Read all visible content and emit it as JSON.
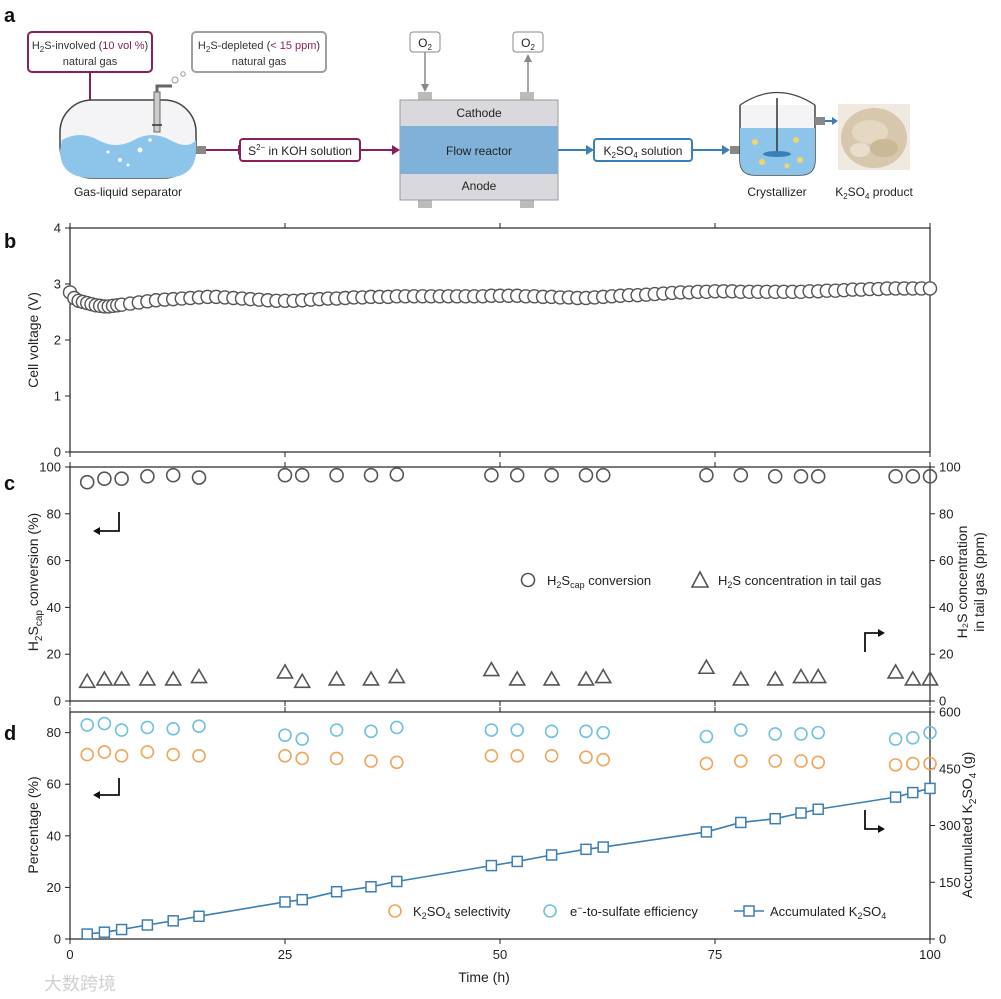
{
  "panels": {
    "a": "a",
    "b": "b",
    "c": "c",
    "d": "d"
  },
  "schematic": {
    "inlet_box": {
      "line1_pre": "H",
      "line1_sub": "2",
      "line1_mid": "S-involved (",
      "line1_hl": "10 vol %",
      "line1_post": ")",
      "line2": "natural gas"
    },
    "outlet_box": {
      "line1_pre": "H",
      "line1_sub": "2",
      "line1_mid": "S-depleted (",
      "line1_hl": "< 15 ppm",
      "line1_post": ")",
      "line2": "natural gas"
    },
    "o2_in": {
      "main": "O",
      "sub": "2"
    },
    "o2_out": {
      "main": "O",
      "sub": "2"
    },
    "cathode": "Cathode",
    "flow_reactor": "Flow reactor",
    "anode": "Anode",
    "s2_solution": {
      "pre": "S",
      "sup": "2−",
      "post": " in KOH solution"
    },
    "k2so4_solution": {
      "a": "K",
      "b": "2",
      "c": "SO",
      "d": "4",
      "e": " solution"
    },
    "separator_label": "Gas-liquid separator",
    "crystallizer_label": "Crystallizer",
    "product_label": {
      "a": "K",
      "b": "2",
      "c": "SO",
      "d": "4",
      "e": " product"
    },
    "colors": {
      "inlet": "#8b1f5c",
      "outlet": "#a0a0a0",
      "reactor": "#7fb1d9",
      "reactor_outer": "#d9d9dd",
      "solution_blue": "#3a7fb5",
      "water": "#8cc4ea"
    }
  },
  "chart_data": [
    {
      "panel": "b",
      "type": "scatter",
      "xlabel": "",
      "ylabel": "Cell voltage (V)",
      "xlim": [
        0,
        100
      ],
      "ylim": [
        0,
        4
      ],
      "y_ticks": [
        "0",
        "1",
        "2",
        "3",
        "4"
      ],
      "marker": "circle",
      "marker_color": "#555555",
      "series": [
        {
          "name": "Cell voltage",
          "x": [
            0,
            0.5,
            1,
            1.5,
            2,
            2.5,
            3,
            3.5,
            4,
            4.5,
            5,
            5.5,
            6,
            7,
            8,
            9,
            10,
            11,
            12,
            13,
            14,
            15,
            16,
            17,
            18,
            19,
            20,
            21,
            22,
            23,
            24,
            25,
            26,
            27,
            28,
            29,
            30,
            31,
            32,
            33,
            34,
            35,
            36,
            37,
            38,
            39,
            40,
            41,
            42,
            43,
            44,
            45,
            46,
            47,
            48,
            49,
            50,
            51,
            52,
            53,
            54,
            55,
            56,
            57,
            58,
            59,
            60,
            61,
            62,
            63,
            64,
            65,
            66,
            67,
            68,
            69,
            70,
            71,
            72,
            73,
            74,
            75,
            76,
            77,
            78,
            79,
            80,
            81,
            82,
            83,
            84,
            85,
            86,
            87,
            88,
            89,
            90,
            91,
            92,
            93,
            94,
            95,
            96,
            97,
            98,
            99,
            100
          ],
          "y": [
            2.85,
            2.75,
            2.7,
            2.68,
            2.66,
            2.64,
            2.62,
            2.61,
            2.6,
            2.6,
            2.61,
            2.62,
            2.63,
            2.65,
            2.67,
            2.69,
            2.71,
            2.72,
            2.73,
            2.74,
            2.75,
            2.76,
            2.77,
            2.77,
            2.76,
            2.75,
            2.74,
            2.73,
            2.72,
            2.71,
            2.7,
            2.7,
            2.7,
            2.71,
            2.72,
            2.73,
            2.74,
            2.74,
            2.75,
            2.76,
            2.76,
            2.77,
            2.77,
            2.77,
            2.78,
            2.78,
            2.78,
            2.78,
            2.78,
            2.78,
            2.78,
            2.78,
            2.78,
            2.78,
            2.78,
            2.79,
            2.79,
            2.79,
            2.79,
            2.78,
            2.78,
            2.77,
            2.77,
            2.76,
            2.76,
            2.75,
            2.75,
            2.76,
            2.77,
            2.78,
            2.79,
            2.8,
            2.8,
            2.81,
            2.82,
            2.83,
            2.84,
            2.85,
            2.85,
            2.86,
            2.86,
            2.87,
            2.87,
            2.87,
            2.86,
            2.86,
            2.86,
            2.86,
            2.86,
            2.86,
            2.86,
            2.86,
            2.87,
            2.87,
            2.88,
            2.88,
            2.89,
            2.9,
            2.9,
            2.91,
            2.91,
            2.92,
            2.92,
            2.92,
            2.92,
            2.92,
            2.92
          ]
        }
      ]
    },
    {
      "panel": "c",
      "type": "scatter",
      "xlabel": "",
      "ylabel": {
        "a": "H",
        "b": "2",
        "c": "S",
        "d": "cap",
        "e": " conversion  (%)"
      },
      "y2label_line1": "H₂S concentration",
      "y2label_line2": "in tail gas (ppm)",
      "xlim": [
        0,
        100
      ],
      "ylim": [
        0,
        100
      ],
      "y_ticks": [
        "0",
        "20",
        "40",
        "60",
        "80",
        "100"
      ],
      "y2lim": [
        0,
        100
      ],
      "y2_ticks": [
        "0",
        "20",
        "40",
        "60",
        "80",
        "100"
      ],
      "series": [
        {
          "name": {
            "a": "H",
            "b": "2",
            "c": "S",
            "d": "cap",
            "e": " conversion"
          },
          "axis": "left",
          "marker": "circle",
          "color": "#555555",
          "x": [
            2,
            4,
            6,
            9,
            12,
            15,
            25,
            27,
            31,
            35,
            38,
            49,
            52,
            56,
            60,
            62,
            74,
            78,
            82,
            85,
            87,
            96,
            98,
            100
          ],
          "y": [
            93.5,
            95,
            95,
            96,
            96.5,
            95.5,
            96.5,
            96.5,
            96.5,
            96.5,
            96.8,
            96.5,
            96.5,
            96.5,
            96.5,
            96.5,
            96.5,
            96.5,
            96,
            96,
            96,
            96,
            96,
            96
          ]
        },
        {
          "name": {
            "a": "H",
            "b": "2",
            "c": "S concentration in tail gas"
          },
          "axis": "right",
          "marker": "triangle",
          "color": "#555555",
          "x": [
            2,
            4,
            6,
            9,
            12,
            15,
            25,
            27,
            31,
            35,
            38,
            49,
            52,
            56,
            60,
            62,
            74,
            78,
            82,
            85,
            87,
            96,
            98,
            100
          ],
          "y": [
            8,
            9,
            9,
            9,
            9,
            10,
            12,
            8,
            9,
            9,
            10,
            13,
            9,
            9,
            9,
            10,
            14,
            9,
            9,
            10,
            10,
            12,
            9,
            9
          ]
        }
      ]
    },
    {
      "panel": "d",
      "type": "scatter",
      "xlabel": "Time (h)",
      "ylabel": "Percentage (%)",
      "y2label": {
        "a": "Accumulated K",
        "b": "2",
        "c": "SO",
        "d": "4",
        "e": " (g)"
      },
      "xlim": [
        0,
        100
      ],
      "x_ticks": [
        "0",
        "25",
        "50",
        "75",
        "100"
      ],
      "ylim": [
        0,
        88
      ],
      "y_ticks": [
        "0",
        "20",
        "40",
        "60",
        "80"
      ],
      "y2lim": [
        0,
        600
      ],
      "y2_ticks": [
        "0",
        "150",
        "300",
        "450",
        "600"
      ],
      "series": [
        {
          "name": {
            "a": "K",
            "b": "2",
            "c": "SO",
            "d": "4",
            "e": " selectivity"
          },
          "axis": "left",
          "marker": "circle",
          "color": "#f0a55a",
          "x": [
            2,
            4,
            6,
            9,
            12,
            15,
            25,
            27,
            31,
            35,
            38,
            49,
            52,
            56,
            60,
            62,
            74,
            78,
            82,
            85,
            87,
            96,
            98,
            100
          ],
          "y": [
            71.5,
            72.5,
            71,
            72.5,
            71.5,
            71,
            71,
            70,
            70,
            69,
            68.5,
            71,
            71,
            71,
            70.5,
            69.5,
            68,
            69,
            69,
            69,
            68.5,
            67.5,
            68,
            68
          ]
        },
        {
          "name": {
            "a": "e",
            "b": "−",
            "c": "-to-sulfate efficiency"
          },
          "axis": "left",
          "marker": "circle",
          "color": "#6ec1e0",
          "x": [
            2,
            4,
            6,
            9,
            12,
            15,
            25,
            27,
            31,
            35,
            38,
            49,
            52,
            56,
            60,
            62,
            74,
            78,
            82,
            85,
            87,
            96,
            98,
            100
          ],
          "y": [
            83,
            83.5,
            81,
            82,
            81.5,
            82.5,
            79,
            77.5,
            81,
            80.5,
            82,
            81,
            81,
            80.5,
            80.5,
            80,
            78.5,
            81,
            79.5,
            79.5,
            80,
            77.5,
            78,
            80
          ]
        },
        {
          "name": {
            "a": "Accumulated K",
            "b": "2",
            "c": "SO",
            "d": "4"
          },
          "axis": "right",
          "marker": "square-line",
          "color": "#3a7fb5",
          "x": [
            2,
            4,
            6,
            9,
            12,
            15,
            25,
            27,
            31,
            35,
            38,
            49,
            52,
            56,
            60,
            62,
            74,
            78,
            82,
            85,
            87,
            96,
            98,
            100
          ],
          "y": [
            13,
            18,
            25,
            37,
            48,
            60,
            98,
            104,
            125,
            138,
            152,
            194,
            205,
            222,
            237,
            243,
            283,
            308,
            318,
            333,
            343,
            375,
            387,
            398
          ]
        }
      ]
    }
  ],
  "watermark": "大数跨境"
}
